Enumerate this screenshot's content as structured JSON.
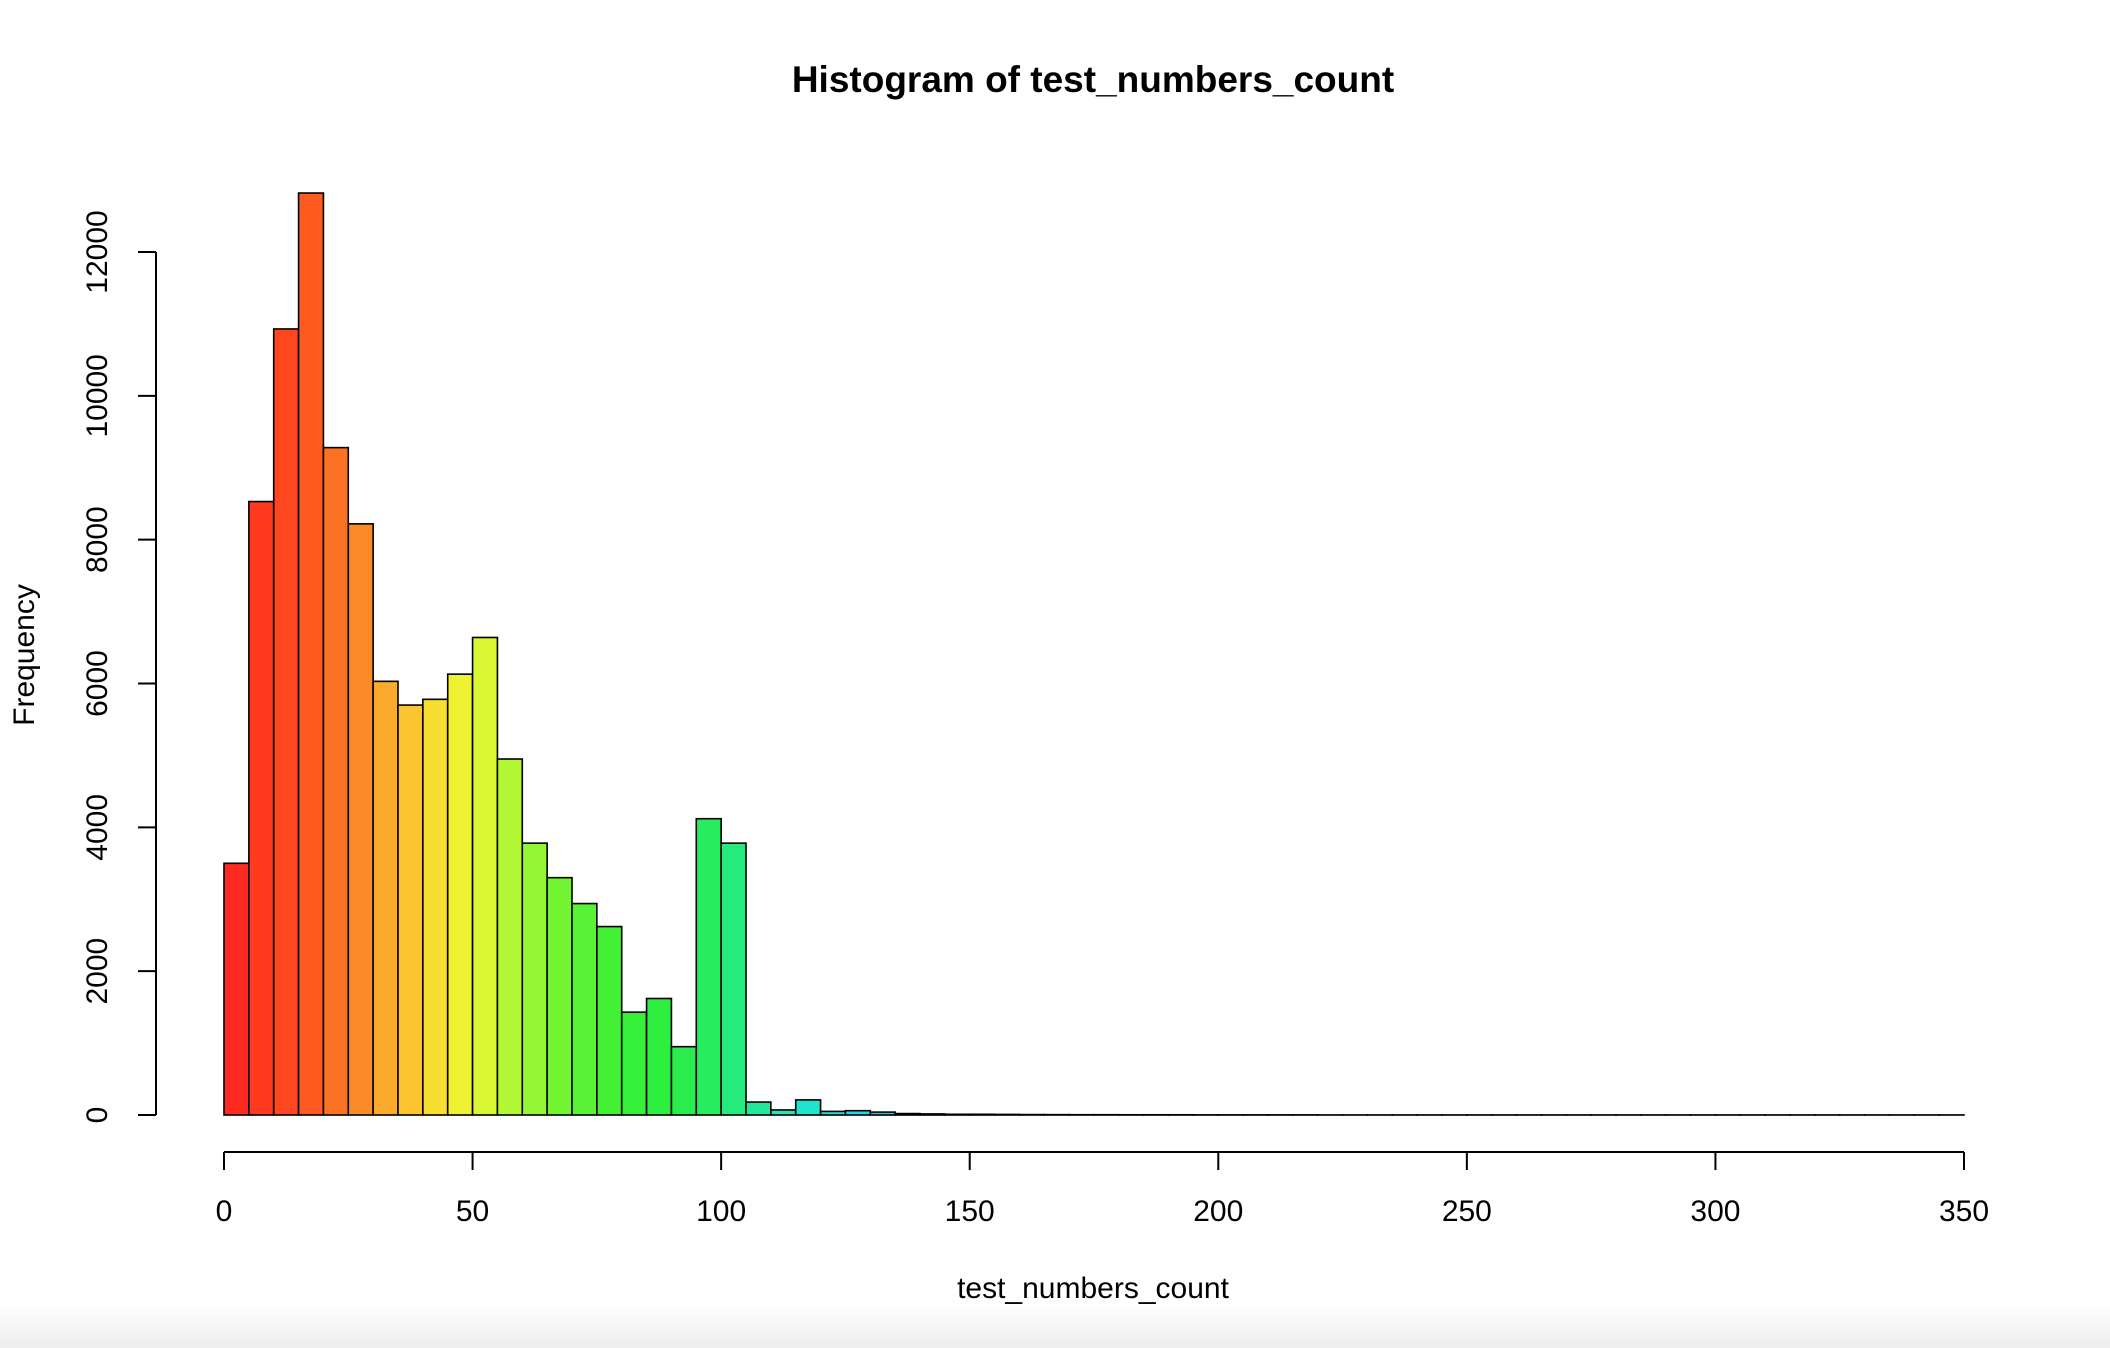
{
  "chart_data": {
    "type": "bar",
    "title": "Histogram of test_numbers_count",
    "xlabel": "test_numbers_count",
    "ylabel": "Frequency",
    "xlim": [
      0,
      350
    ],
    "ylim": [
      0,
      12800
    ],
    "bin_width": 5,
    "x_ticks": [
      0,
      50,
      100,
      150,
      200,
      250,
      300,
      350
    ],
    "y_ticks": [
      0,
      2000,
      4000,
      6000,
      8000,
      10000,
      12000
    ],
    "values": [
      3500,
      8530,
      10930,
      12820,
      9280,
      8220,
      6030,
      5700,
      5780,
      6130,
      6640,
      4950,
      3780,
      3300,
      2940,
      2620,
      1430,
      1620,
      950,
      4120,
      3780,
      180,
      70,
      210,
      50,
      60,
      40,
      20,
      15,
      10,
      10,
      8,
      6,
      5,
      4,
      4,
      3,
      3,
      3,
      2,
      2,
      2,
      2,
      2,
      1,
      1,
      1,
      1,
      1,
      1,
      1,
      1,
      1,
      1,
      1,
      1,
      1,
      1,
      1,
      1,
      1,
      1,
      1,
      1,
      1,
      1,
      1,
      1,
      1,
      1
    ],
    "colors": [
      "#ff2a1f",
      "#ff3a1f",
      "#ff471f",
      "#ff5a20",
      "#fc7224",
      "#fb8a29",
      "#fcaa2c",
      "#fcc42f",
      "#f8de31",
      "#eef232",
      "#d8f633",
      "#b4f734",
      "#94f634",
      "#74f534",
      "#5af234",
      "#44f034",
      "#36ef38",
      "#2eee40",
      "#2aec4c",
      "#26ec5e",
      "#25ea7c",
      "#23e89a",
      "#22e6b4",
      "#21e4cc",
      "#20e0dc",
      "#20d8e4",
      "#22c8e8"
    ],
    "grid": false,
    "legend": "none"
  }
}
